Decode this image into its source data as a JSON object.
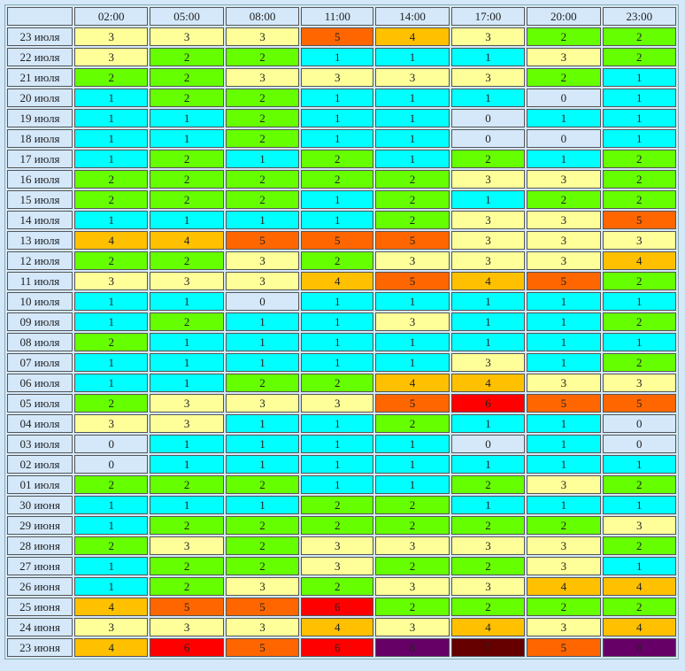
{
  "table": {
    "columns": [
      "02:00",
      "05:00",
      "08:00",
      "11:00",
      "14:00",
      "17:00",
      "20:00",
      "23:00"
    ],
    "colors": [
      "#d4e8fa",
      "#00ffff",
      "#66ff00",
      "#ffff99",
      "#ffc000",
      "#ff6600",
      "#ff0000",
      "#660000",
      "#660066"
    ],
    "rows": [
      {
        "label": "23 июля",
        "values": [
          3,
          3,
          3,
          5,
          4,
          3,
          2,
          2
        ]
      },
      {
        "label": "22 июля",
        "values": [
          3,
          2,
          2,
          1,
          1,
          1,
          3,
          2
        ]
      },
      {
        "label": "21 июля",
        "values": [
          2,
          2,
          3,
          3,
          3,
          3,
          2,
          1
        ]
      },
      {
        "label": "20 июля",
        "values": [
          1,
          2,
          2,
          1,
          1,
          1,
          0,
          1
        ]
      },
      {
        "label": "19 июля",
        "values": [
          1,
          1,
          2,
          1,
          1,
          0,
          1,
          1
        ]
      },
      {
        "label": "18 июля",
        "values": [
          1,
          1,
          2,
          1,
          1,
          0,
          0,
          1
        ]
      },
      {
        "label": "17 июля",
        "values": [
          1,
          2,
          1,
          2,
          1,
          2,
          1,
          2
        ]
      },
      {
        "label": "16 июля",
        "values": [
          2,
          2,
          2,
          2,
          2,
          3,
          3,
          2
        ]
      },
      {
        "label": "15 июля",
        "values": [
          2,
          2,
          2,
          1,
          2,
          1,
          2,
          2
        ]
      },
      {
        "label": "14 июля",
        "values": [
          1,
          1,
          1,
          1,
          2,
          3,
          3,
          5
        ]
      },
      {
        "label": "13 июля",
        "values": [
          4,
          4,
          5,
          5,
          5,
          3,
          3,
          3
        ]
      },
      {
        "label": "12 июля",
        "values": [
          2,
          2,
          3,
          2,
          3,
          3,
          3,
          4
        ]
      },
      {
        "label": "11 июля",
        "values": [
          3,
          3,
          3,
          4,
          5,
          4,
          5,
          2
        ]
      },
      {
        "label": "10 июля",
        "values": [
          1,
          1,
          0,
          1,
          1,
          1,
          1,
          1
        ]
      },
      {
        "label": "09 июля",
        "values": [
          1,
          2,
          1,
          1,
          3,
          1,
          1,
          2
        ]
      },
      {
        "label": "08 июля",
        "values": [
          2,
          1,
          1,
          1,
          1,
          1,
          1,
          1
        ]
      },
      {
        "label": "07 июля",
        "values": [
          1,
          1,
          1,
          1,
          1,
          3,
          1,
          2
        ]
      },
      {
        "label": "06 июля",
        "values": [
          1,
          1,
          2,
          2,
          4,
          4,
          3,
          3
        ]
      },
      {
        "label": "05 июля",
        "values": [
          2,
          3,
          3,
          3,
          5,
          6,
          5,
          5
        ]
      },
      {
        "label": "04 июля",
        "values": [
          3,
          3,
          1,
          1,
          2,
          1,
          1,
          0
        ]
      },
      {
        "label": "03 июля",
        "values": [
          0,
          1,
          1,
          1,
          1,
          0,
          1,
          0
        ]
      },
      {
        "label": "02 июля",
        "values": [
          0,
          1,
          1,
          1,
          1,
          1,
          1,
          1
        ]
      },
      {
        "label": "01 июля",
        "values": [
          2,
          2,
          2,
          1,
          1,
          2,
          3,
          2
        ]
      },
      {
        "label": "30 июня",
        "values": [
          1,
          1,
          1,
          2,
          2,
          1,
          1,
          1
        ]
      },
      {
        "label": "29 июня",
        "values": [
          1,
          2,
          2,
          2,
          2,
          2,
          2,
          3
        ]
      },
      {
        "label": "28 июня",
        "values": [
          2,
          3,
          2,
          3,
          3,
          3,
          3,
          2
        ]
      },
      {
        "label": "27 июня",
        "values": [
          1,
          2,
          2,
          3,
          2,
          2,
          3,
          1
        ]
      },
      {
        "label": "26 июня",
        "values": [
          1,
          2,
          3,
          2,
          3,
          3,
          4,
          4
        ]
      },
      {
        "label": "25 июня",
        "values": [
          4,
          5,
          5,
          6,
          2,
          2,
          2,
          2
        ]
      },
      {
        "label": "24 июня",
        "values": [
          3,
          3,
          3,
          4,
          3,
          4,
          3,
          4
        ]
      },
      {
        "label": "23 июня",
        "values": [
          4,
          6,
          5,
          6,
          8,
          7,
          5,
          8
        ]
      }
    ]
  }
}
